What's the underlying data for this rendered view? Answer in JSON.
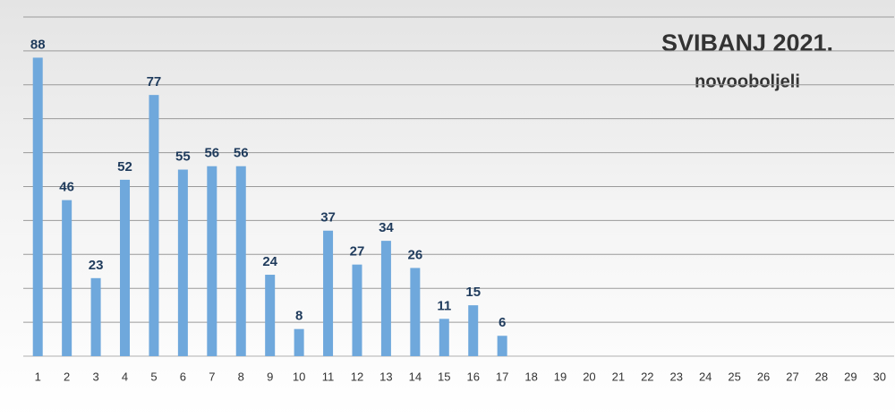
{
  "chart_data": {
    "type": "bar",
    "title": "SVIBANJ 2021.",
    "subtitle": "novooboljeli",
    "categories": [
      "1",
      "2",
      "3",
      "4",
      "5",
      "6",
      "7",
      "8",
      "9",
      "10",
      "11",
      "12",
      "13",
      "14",
      "15",
      "16",
      "17",
      "18",
      "19",
      "20",
      "21",
      "22",
      "23",
      "24",
      "25",
      "26",
      "27",
      "28",
      "29",
      "30"
    ],
    "values": [
      88,
      46,
      23,
      52,
      77,
      55,
      56,
      56,
      24,
      8,
      37,
      27,
      34,
      26,
      11,
      15,
      6,
      null,
      null,
      null,
      null,
      null,
      null,
      null,
      null,
      null,
      null,
      null,
      null,
      null
    ],
    "color": "#6fa8dc",
    "ylim": [
      0,
      105
    ],
    "yticks": [
      0,
      10,
      20,
      30,
      40,
      50,
      60,
      70,
      80,
      90,
      100
    ],
    "grid": true
  }
}
